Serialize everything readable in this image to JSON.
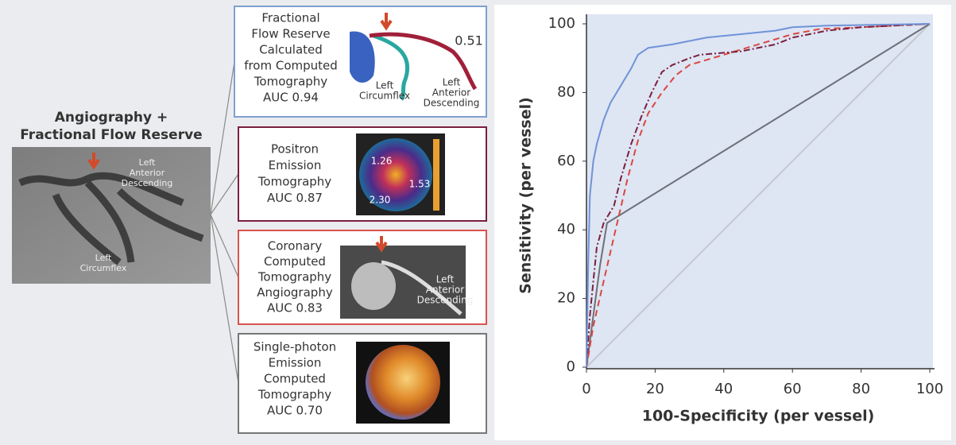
{
  "source": {
    "title_lines": [
      "Angiography +",
      "Fractional Flow Reserve"
    ],
    "image_labels": [
      {
        "lines": [
          "Left",
          "Anterior",
          "Descending"
        ]
      },
      {
        "lines": [
          "Left",
          "Circumflex"
        ]
      }
    ]
  },
  "panels": [
    {
      "lines": [
        "Fractional",
        "Flow Reserve",
        "Calculated",
        "from Computed",
        "Tomography",
        "AUC 0.94"
      ],
      "image_labels": [
        {
          "lines": [
            "0.51"
          ]
        },
        {
          "lines": [
            "Left",
            "Circumflex"
          ]
        },
        {
          "lines": [
            "Left",
            "Anterior",
            "Descending"
          ]
        }
      ]
    },
    {
      "lines": [
        "Positron",
        "Emission",
        "Tomography",
        "AUC 0.87"
      ],
      "image_labels": [
        {
          "lines": [
            "1.26"
          ]
        },
        {
          "lines": [
            "2.30"
          ]
        },
        {
          "lines": [
            "1.53"
          ]
        }
      ]
    },
    {
      "lines": [
        "Coronary",
        "Computed",
        "Tomography",
        "Angiography",
        "AUC 0.83"
      ],
      "image_labels": [
        {
          "lines": [
            "Left",
            "Anterior",
            "Descending"
          ]
        }
      ]
    },
    {
      "lines": [
        "Single-photon",
        "Emission",
        "Computed",
        "Tomography",
        "AUC 0.70"
      ],
      "image_labels": []
    }
  ],
  "chart_data": {
    "type": "line",
    "xlabel": "100-Specificity (per vessel)",
    "ylabel": "Sensitivity (per vessel)",
    "xlim": [
      0,
      100
    ],
    "ylim": [
      0,
      100
    ],
    "xticks": [
      0,
      20,
      40,
      60,
      80,
      100
    ],
    "yticks": [
      0,
      20,
      40,
      60,
      80,
      100
    ],
    "series": [
      {
        "color": "#c4c7cf",
        "dash": "solid",
        "x": [
          0,
          100
        ],
        "values": [
          0,
          100
        ]
      },
      {
        "color": "#6d7078",
        "dash": "solid",
        "x": [
          0,
          2,
          4,
          6,
          100
        ],
        "values": [
          0,
          15,
          30,
          42,
          100
        ]
      },
      {
        "color": "#d9473f",
        "dash": "dashed",
        "x": [
          0,
          2,
          5,
          8,
          12,
          15,
          18,
          22,
          26,
          30,
          40,
          50,
          60,
          68,
          80,
          100
        ],
        "values": [
          0,
          12,
          25,
          38,
          55,
          66,
          74,
          80,
          85,
          88,
          91,
          94,
          97,
          98.5,
          99,
          100
        ]
      },
      {
        "color": "#7a1f3d",
        "dash": "dashdot",
        "x": [
          0,
          1,
          2,
          3,
          5,
          8,
          10,
          13,
          16,
          19,
          22,
          25,
          30,
          33,
          45,
          55,
          60,
          65,
          70,
          80,
          100
        ],
        "values": [
          0,
          15,
          25,
          35,
          42,
          47,
          55,
          65,
          73,
          80,
          86,
          88,
          90,
          91,
          92,
          94,
          96,
          97,
          98,
          99,
          100
        ]
      },
      {
        "color": "#6f93d8",
        "dash": "solid",
        "x": [
          0,
          0.5,
          1,
          2,
          3,
          5,
          7,
          10,
          13,
          15,
          18,
          25,
          35,
          45,
          55,
          60,
          70,
          100
        ],
        "values": [
          0,
          30,
          50,
          60,
          65,
          72,
          77,
          82,
          87,
          91,
          93,
          94,
          96,
          97,
          98,
          99,
          99.5,
          100
        ]
      }
    ]
  }
}
